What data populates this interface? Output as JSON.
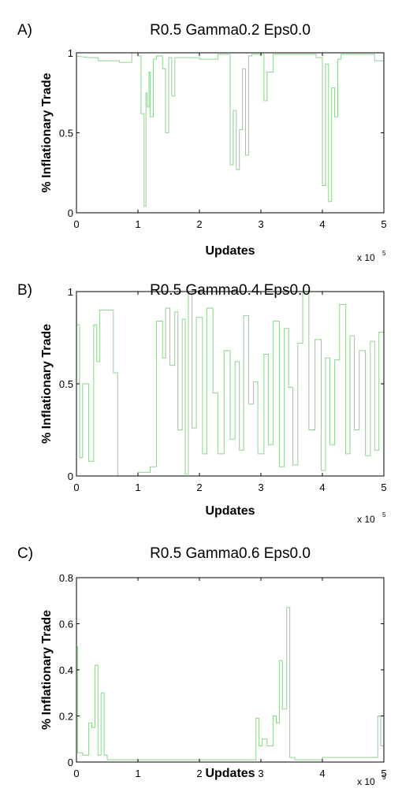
{
  "chart_data": [
    {
      "type": "line",
      "panel_label": "A)",
      "title": "R0.5 Gamma0.2 Eps0.0",
      "xlabel": "Updates",
      "ylabel": "% Inflationary Trade",
      "x_multiplier_base": "x 10",
      "x_multiplier_exp": "5",
      "xlim": [
        0,
        5
      ],
      "ylim": [
        0,
        1
      ],
      "xticks": [
        0,
        1,
        2,
        3,
        4,
        5
      ],
      "xtick_labels": [
        "0",
        "1",
        "2",
        "3",
        "4",
        "5"
      ],
      "yticks": [
        0,
        0.5,
        1
      ],
      "ytick_labels": [
        "0",
        "0.5",
        "1"
      ],
      "color": "#8fd18f",
      "series": [
        {
          "x": [
            0,
            0.2,
            0.35,
            0.35,
            0.5,
            0.7,
            0.7,
            0.9,
            0.9,
            1.0,
            1.0,
            1.05,
            1.05,
            1.1,
            1.1,
            1.13,
            1.13,
            1.15,
            1.15,
            1.18,
            1.18,
            1.2,
            1.2,
            1.25,
            1.25,
            1.3,
            1.3,
            1.4,
            1.4,
            1.45,
            1.45,
            1.5,
            1.5,
            1.55,
            1.55,
            1.6,
            1.6,
            1.65,
            1.65,
            1.7,
            1.7,
            2.0,
            2.0,
            2.3,
            2.3,
            2.5,
            2.5,
            2.55,
            2.55,
            2.6,
            2.6,
            2.65,
            2.65,
            2.7,
            2.7,
            2.75,
            2.75,
            2.8,
            2.8,
            2.85,
            2.85,
            2.95,
            2.95,
            3.05,
            3.05,
            3.1,
            3.1,
            3.2,
            3.2,
            3.5,
            3.5,
            3.9,
            3.9,
            4.0,
            4.0,
            4.05,
            4.05,
            4.1,
            4.1,
            4.15,
            4.15,
            4.2,
            4.2,
            4.25,
            4.25,
            4.3,
            4.3,
            4.6,
            4.6,
            4.85,
            4.85,
            5.0
          ],
          "y": [
            0.98,
            0.97,
            0.97,
            0.95,
            0.95,
            0.95,
            0.94,
            0.94,
            1.0,
            1.0,
            0.98,
            0.98,
            0.62,
            0.62,
            0.04,
            0.04,
            0.75,
            0.75,
            0.66,
            0.66,
            0.88,
            0.88,
            0.6,
            0.6,
            0.96,
            0.96,
            0.98,
            0.98,
            0.9,
            0.9,
            0.5,
            0.5,
            0.97,
            0.97,
            0.73,
            0.73,
            0.97,
            0.97,
            0.97,
            0.97,
            0.97,
            0.97,
            0.96,
            0.96,
            0.99,
            0.99,
            0.3,
            0.3,
            0.64,
            0.64,
            0.27,
            0.27,
            0.52,
            0.52,
            0.9,
            0.9,
            0.36,
            0.36,
            0.98,
            0.98,
            0.99,
            0.99,
            0.99,
            0.99,
            0.7,
            0.7,
            0.88,
            0.88,
            0.99,
            0.99,
            0.99,
            0.99,
            0.97,
            0.97,
            0.17,
            0.17,
            0.93,
            0.93,
            0.07,
            0.07,
            0.78,
            0.78,
            0.6,
            0.6,
            0.96,
            0.96,
            0.99,
            0.99,
            0.99,
            0.99,
            0.95,
            0.95
          ]
        }
      ]
    },
    {
      "type": "line",
      "panel_label": "B)",
      "title": "R0.5 Gamma0.4 Eps0.0",
      "xlabel": "Updates",
      "ylabel": "% Inflationary Trade",
      "x_multiplier_base": "x 10",
      "x_multiplier_exp": "5",
      "xlim": [
        0,
        5
      ],
      "ylim": [
        0,
        1
      ],
      "xticks": [
        0,
        1,
        2,
        3,
        4,
        5
      ],
      "xtick_labels": [
        "0",
        "1",
        "2",
        "3",
        "4",
        "5"
      ],
      "yticks": [
        0,
        0.5,
        1
      ],
      "ytick_labels": [
        "0",
        "0.5",
        "1"
      ],
      "color": "#8fd18f",
      "series": [
        {
          "x": [
            0,
            0.05,
            0.05,
            0.1,
            0.1,
            0.2,
            0.2,
            0.28,
            0.28,
            0.33,
            0.33,
            0.38,
            0.38,
            0.6,
            0.6,
            0.67,
            0.67,
            1.0,
            1.0,
            1.2,
            1.2,
            1.3,
            1.3,
            1.4,
            1.4,
            1.45,
            1.45,
            1.52,
            1.52,
            1.6,
            1.6,
            1.65,
            1.65,
            1.72,
            1.72,
            1.77,
            1.77,
            1.82,
            1.82,
            1.88,
            1.88,
            1.95,
            1.95,
            2.05,
            2.05,
            2.12,
            2.12,
            2.22,
            2.22,
            2.3,
            2.3,
            2.4,
            2.4,
            2.5,
            2.5,
            2.58,
            2.58,
            2.65,
            2.65,
            2.72,
            2.72,
            2.8,
            2.8,
            2.88,
            2.88,
            2.95,
            2.95,
            3.05,
            3.05,
            3.12,
            3.12,
            3.2,
            3.2,
            3.3,
            3.3,
            3.38,
            3.38,
            3.45,
            3.45,
            3.52,
            3.52,
            3.6,
            3.6,
            3.68,
            3.68,
            3.78,
            3.78,
            3.88,
            3.88,
            3.98,
            3.98,
            4.05,
            4.05,
            4.12,
            4.12,
            4.2,
            4.2,
            4.28,
            4.28,
            4.38,
            4.38,
            4.45,
            4.45,
            4.52,
            4.52,
            4.6,
            4.6,
            4.7,
            4.7,
            4.78,
            4.78,
            4.85,
            4.85,
            4.92,
            4.92,
            5.0
          ],
          "y": [
            0.82,
            0.82,
            0.1,
            0.1,
            0.5,
            0.5,
            0.08,
            0.08,
            0.82,
            0.82,
            0.62,
            0.62,
            0.9,
            0.9,
            0.56,
            0.56,
            0.0,
            0.0,
            0.02,
            0.02,
            0.05,
            0.05,
            0.84,
            0.84,
            0.64,
            0.64,
            0.91,
            0.91,
            0.6,
            0.6,
            0.89,
            0.89,
            0.25,
            0.25,
            0.85,
            0.85,
            0.01,
            0.01,
            1.0,
            1.0,
            0.26,
            0.26,
            0.86,
            0.86,
            0.12,
            0.12,
            0.91,
            0.91,
            0.45,
            0.45,
            0.12,
            0.12,
            0.68,
            0.68,
            0.2,
            0.2,
            0.62,
            0.62,
            0.14,
            0.14,
            0.87,
            0.87,
            0.39,
            0.39,
            0.51,
            0.51,
            0.12,
            0.12,
            0.66,
            0.66,
            0.17,
            0.17,
            0.84,
            0.84,
            0.05,
            0.05,
            0.8,
            0.8,
            0.48,
            0.48,
            0.06,
            0.06,
            0.72,
            0.72,
            1.0,
            1.0,
            0.25,
            0.25,
            0.74,
            0.74,
            0.03,
            0.03,
            0.64,
            0.64,
            0.17,
            0.17,
            0.63,
            0.63,
            0.93,
            0.93,
            0.12,
            0.12,
            0.76,
            0.76,
            0.25,
            0.25,
            0.68,
            0.68,
            0.11,
            0.11,
            0.73,
            0.73,
            0.14,
            0.14,
            0.78,
            0.78
          ]
        }
      ]
    },
    {
      "type": "line",
      "panel_label": "C)",
      "title": "R0.5 Gamma0.6 Eps0.0",
      "xlabel": "Updates",
      "ylabel": "% Inflationary Trade",
      "x_multiplier_base": "x 10",
      "x_multiplier_exp": "5",
      "xlim": [
        0,
        5
      ],
      "ylim": [
        0,
        0.8
      ],
      "xticks": [
        0,
        1,
        2,
        3,
        4,
        5
      ],
      "xtick_labels": [
        "0",
        "1",
        "2",
        "3",
        "4",
        "5"
      ],
      "yticks": [
        0,
        0.2,
        0.4,
        0.6,
        0.8
      ],
      "ytick_labels": [
        "0",
        "0.2",
        "0.4",
        "0.6",
        "0.8"
      ],
      "color": "#8fd18f",
      "series": [
        {
          "x": [
            0,
            0.02,
            0.02,
            0.1,
            0.1,
            0.2,
            0.2,
            0.25,
            0.25,
            0.3,
            0.3,
            0.35,
            0.35,
            0.4,
            0.4,
            0.45,
            0.45,
            0.5,
            0.5,
            2.92,
            2.92,
            2.97,
            2.97,
            3.02,
            3.02,
            3.1,
            3.1,
            3.2,
            3.2,
            3.25,
            3.25,
            3.3,
            3.3,
            3.35,
            3.35,
            3.42,
            3.42,
            3.47,
            3.47,
            3.55,
            3.55,
            4.0,
            4.0,
            4.5,
            4.5,
            4.9,
            4.9,
            4.95,
            4.95,
            5.0
          ],
          "y": [
            0.5,
            0.5,
            0.04,
            0.04,
            0.03,
            0.03,
            0.17,
            0.17,
            0.15,
            0.15,
            0.42,
            0.42,
            0.03,
            0.03,
            0.3,
            0.3,
            0.03,
            0.03,
            0.01,
            0.01,
            0.19,
            0.19,
            0.07,
            0.07,
            0.1,
            0.1,
            0.07,
            0.07,
            0.2,
            0.2,
            0.17,
            0.17,
            0.44,
            0.44,
            0.23,
            0.23,
            0.67,
            0.67,
            0.02,
            0.02,
            0.01,
            0.01,
            0.02,
            0.02,
            0.02,
            0.02,
            0.2,
            0.2,
            0.07,
            0.07
          ]
        }
      ]
    }
  ]
}
